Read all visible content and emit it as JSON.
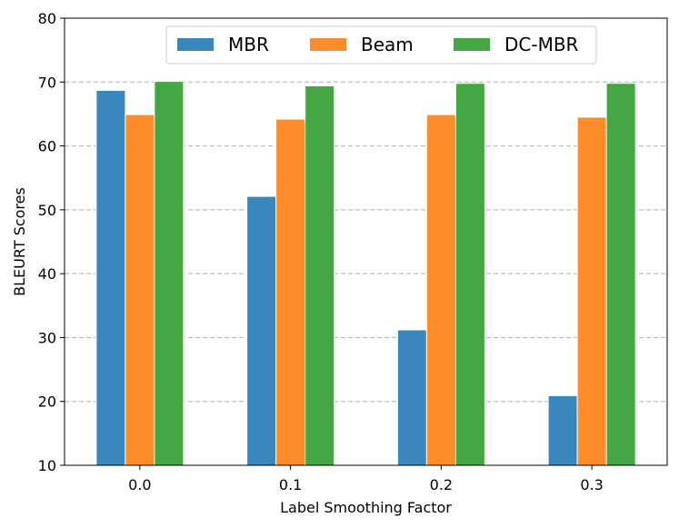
{
  "chart_data": {
    "type": "bar",
    "title": "",
    "xlabel": "Label Smoothing Factor",
    "ylabel": "BLEURT Scores",
    "categories": [
      "0.0",
      "0.1",
      "0.2",
      "0.3"
    ],
    "ylim": [
      10,
      80
    ],
    "yticks": [
      10,
      20,
      30,
      40,
      50,
      60,
      70,
      80
    ],
    "grid": "y-dashed",
    "legend_position": "top-center",
    "series": [
      {
        "name": "MBR",
        "color": "#3a87be",
        "values": [
          68.7,
          52.1,
          31.2,
          20.9
        ]
      },
      {
        "name": "Beam",
        "color": "#ff8c2b",
        "values": [
          64.9,
          64.2,
          64.9,
          64.5
        ]
      },
      {
        "name": "DC-MBR",
        "color": "#44a744",
        "values": [
          70.1,
          69.4,
          69.8,
          69.8
        ]
      }
    ]
  }
}
